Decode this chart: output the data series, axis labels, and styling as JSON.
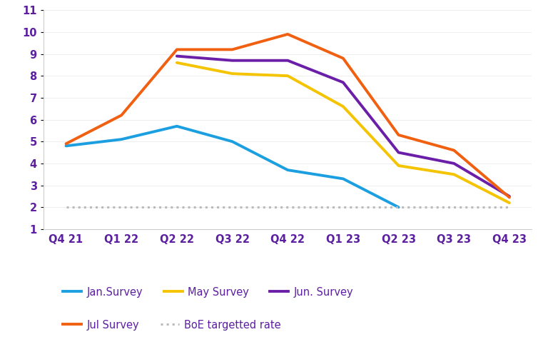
{
  "x_labels": [
    "Q4 21",
    "Q1 22",
    "Q2 22",
    "Q3 22",
    "Q4 22",
    "Q1 23",
    "Q2 23",
    "Q3 23",
    "Q4 23"
  ],
  "jan_survey": [
    4.8,
    5.1,
    5.7,
    5.0,
    3.7,
    3.3,
    2.0,
    null,
    null
  ],
  "may_survey": [
    null,
    null,
    8.6,
    8.1,
    8.0,
    6.6,
    3.9,
    3.5,
    2.2
  ],
  "jun_survey": [
    null,
    null,
    8.9,
    8.7,
    8.7,
    7.7,
    4.5,
    4.0,
    2.5
  ],
  "jul_survey": [
    4.9,
    6.2,
    9.2,
    9.2,
    9.9,
    8.8,
    5.3,
    4.6,
    2.45
  ],
  "boe_target": [
    2.0,
    2.0,
    2.0,
    2.0,
    2.0,
    2.0,
    2.0,
    2.0,
    2.0
  ],
  "jan_color": "#1B9FE0",
  "may_color": "#F5C400",
  "jun_color": "#6B1FA8",
  "jul_color": "#F06010",
  "boe_color": "#BBBBBB",
  "ylim": [
    1,
    11
  ],
  "yticks": [
    1,
    2,
    3,
    4,
    5,
    6,
    7,
    8,
    9,
    10,
    11
  ],
  "tick_color": "#5B1FA0",
  "background_color": "#FFFFFF",
  "linewidth": 2.8
}
